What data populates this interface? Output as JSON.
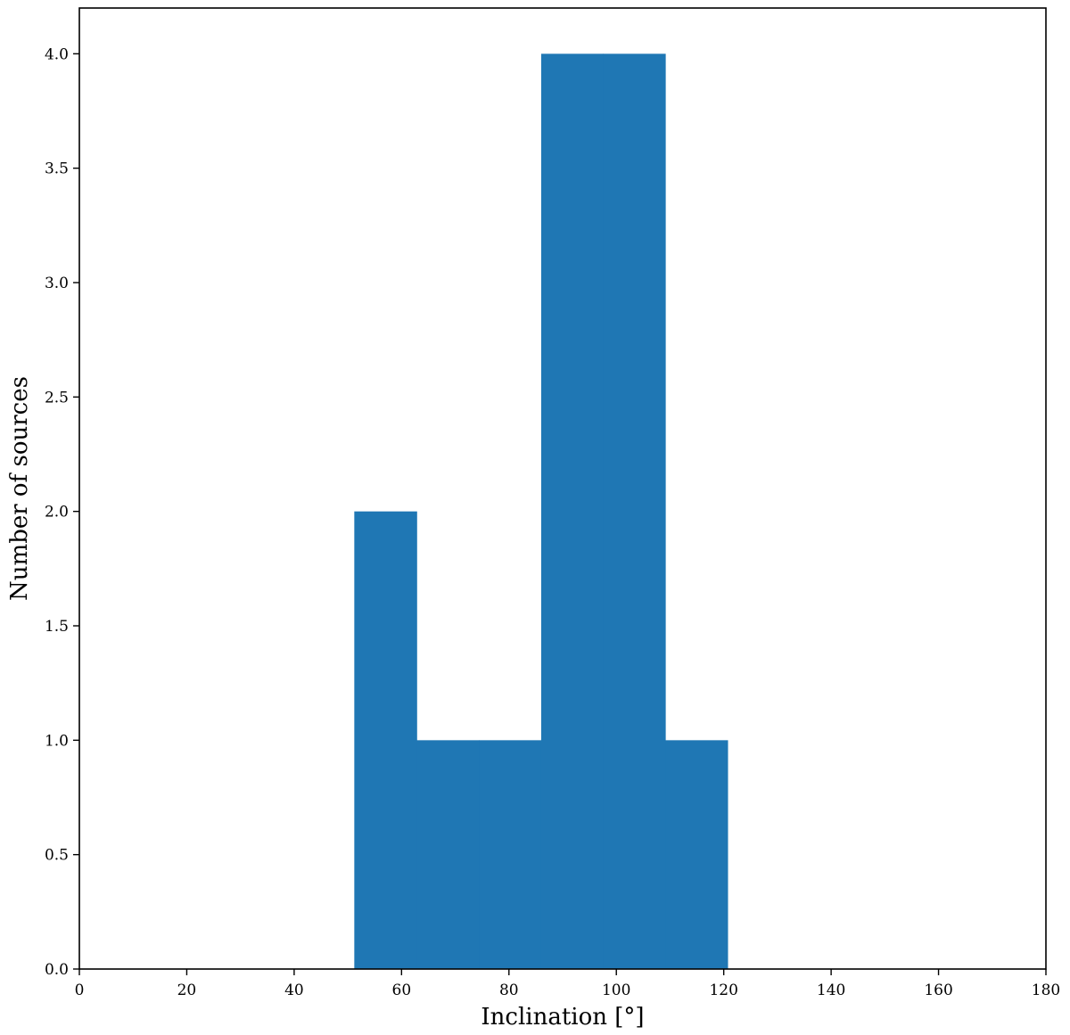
{
  "chart_data": {
    "type": "bar",
    "subtype": "histogram",
    "title": "",
    "xlabel": "Inclination [°]",
    "ylabel": "Number of sources",
    "xlim": [
      0,
      180
    ],
    "ylim": [
      0,
      4.2
    ],
    "x_ticks": [
      0,
      20,
      40,
      60,
      80,
      100,
      120,
      140,
      160,
      180
    ],
    "x_tick_labels": [
      "0",
      "20",
      "40",
      "60",
      "80",
      "100",
      "120",
      "140",
      "160",
      "180"
    ],
    "y_ticks": [
      0.0,
      0.5,
      1.0,
      1.5,
      2.0,
      2.5,
      3.0,
      3.5,
      4.0
    ],
    "y_tick_labels": [
      "0.0",
      "0.5",
      "1.0",
      "1.5",
      "2.0",
      "2.5",
      "3.0",
      "3.5",
      "4.0"
    ],
    "grid": false,
    "bar_color": "#1f77b4",
    "bins": [
      {
        "x_start": 51.2,
        "x_end": 62.8,
        "value": 2
      },
      {
        "x_start": 62.8,
        "x_end": 74.4,
        "value": 1
      },
      {
        "x_start": 74.4,
        "x_end": 86.0,
        "value": 1
      },
      {
        "x_start": 86.0,
        "x_end": 97.5,
        "value": 4
      },
      {
        "x_start": 97.5,
        "x_end": 109.1,
        "value": 4
      },
      {
        "x_start": 109.1,
        "x_end": 120.7,
        "value": 1
      }
    ]
  }
}
